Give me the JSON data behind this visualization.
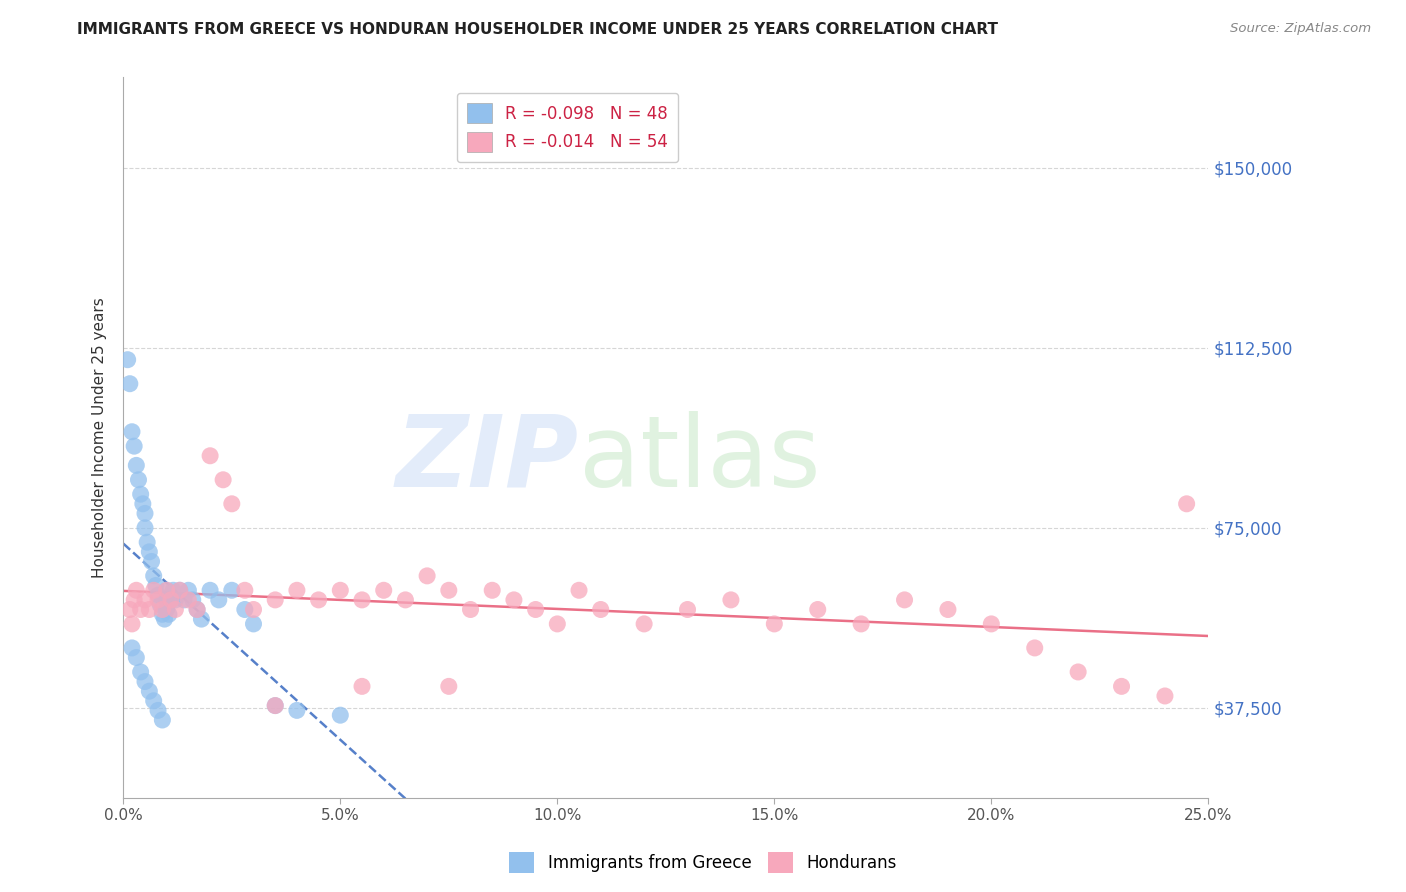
{
  "title": "IMMIGRANTS FROM GREECE VS HONDURAN HOUSEHOLDER INCOME UNDER 25 YEARS CORRELATION CHART",
  "source": "Source: ZipAtlas.com",
  "ylabel": "Householder Income Under 25 years",
  "xlabel_ticks": [
    "0.0%",
    "5.0%",
    "10.0%",
    "15.0%",
    "20.0%",
    "25.0%"
  ],
  "xlabel_vals": [
    0.0,
    5.0,
    10.0,
    15.0,
    20.0,
    25.0
  ],
  "ytick_labels": [
    "$37,500",
    "$75,000",
    "$112,500",
    "$150,000"
  ],
  "ytick_vals": [
    37500,
    75000,
    112500,
    150000
  ],
  "xmin": 0.0,
  "xmax": 25.0,
  "ymin": 18750,
  "ymax": 168750,
  "legend1_label": "R = -0.098   N = 48",
  "legend2_label": "R = -0.014   N = 54",
  "blue_color": "#92c0ed",
  "pink_color": "#f7a8bc",
  "blue_line_color": "#4472c4",
  "pink_line_color": "#e8607a",
  "greece_x": [
    0.1,
    0.15,
    0.2,
    0.25,
    0.3,
    0.35,
    0.4,
    0.45,
    0.5,
    0.5,
    0.55,
    0.6,
    0.65,
    0.7,
    0.75,
    0.8,
    0.85,
    0.9,
    0.95,
    1.0,
    1.0,
    1.0,
    1.05,
    1.1,
    1.15,
    1.2,
    1.3,
    1.4,
    1.5,
    1.6,
    1.7,
    1.8,
    2.0,
    2.2,
    2.5,
    2.8,
    3.0,
    3.5,
    4.0,
    5.0,
    0.2,
    0.3,
    0.4,
    0.5,
    0.6,
    0.7,
    0.8,
    0.9
  ],
  "greece_y": [
    110000,
    105000,
    95000,
    92000,
    88000,
    85000,
    82000,
    80000,
    78000,
    75000,
    72000,
    70000,
    68000,
    65000,
    63000,
    61000,
    59000,
    57000,
    56000,
    62000,
    60000,
    58000,
    57000,
    60000,
    62000,
    60000,
    62000,
    60000,
    62000,
    60000,
    58000,
    56000,
    62000,
    60000,
    62000,
    58000,
    55000,
    38000,
    37000,
    36000,
    50000,
    48000,
    45000,
    43000,
    41000,
    39000,
    37000,
    35000
  ],
  "honduran_x": [
    0.15,
    0.2,
    0.25,
    0.3,
    0.4,
    0.5,
    0.6,
    0.7,
    0.8,
    0.9,
    1.0,
    1.1,
    1.2,
    1.3,
    1.5,
    1.7,
    2.0,
    2.3,
    2.5,
    2.8,
    3.0,
    3.5,
    4.0,
    4.5,
    5.0,
    5.5,
    6.0,
    6.5,
    7.0,
    7.5,
    8.0,
    8.5,
    9.0,
    9.5,
    10.0,
    10.5,
    11.0,
    12.0,
    13.0,
    14.0,
    15.0,
    16.0,
    17.0,
    18.0,
    19.0,
    20.0,
    21.0,
    22.0,
    23.0,
    24.0,
    3.5,
    5.5,
    7.5,
    24.5
  ],
  "honduran_y": [
    58000,
    55000,
    60000,
    62000,
    58000,
    60000,
    58000,
    62000,
    60000,
    58000,
    62000,
    60000,
    58000,
    62000,
    60000,
    58000,
    90000,
    85000,
    80000,
    62000,
    58000,
    60000,
    62000,
    60000,
    62000,
    60000,
    62000,
    60000,
    65000,
    62000,
    58000,
    62000,
    60000,
    58000,
    55000,
    62000,
    58000,
    55000,
    58000,
    60000,
    55000,
    58000,
    55000,
    60000,
    58000,
    55000,
    50000,
    45000,
    42000,
    40000,
    38000,
    42000,
    42000,
    80000
  ]
}
